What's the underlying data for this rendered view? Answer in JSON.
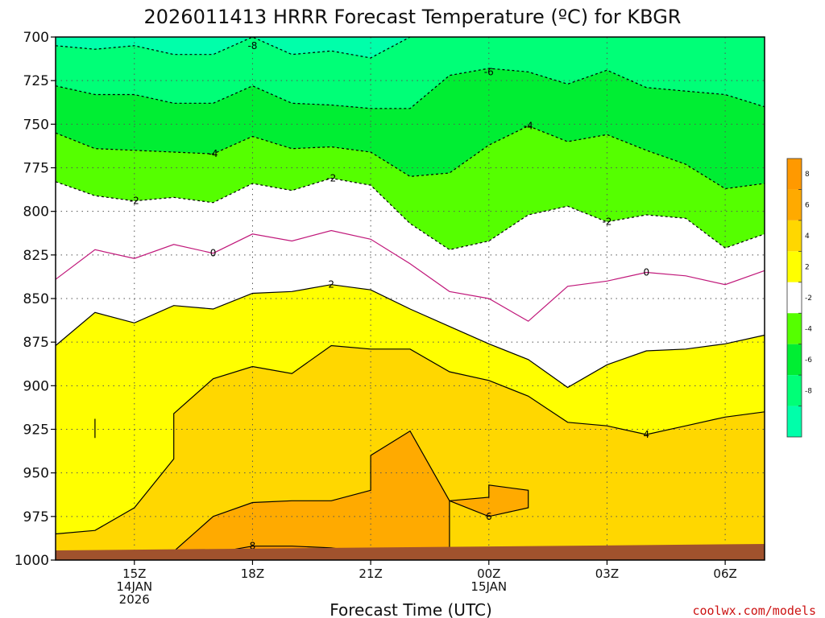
{
  "title": "2026011413 HRRR Forecast Temperature (ºC) for KBGR",
  "credit": "coolwx.com/models",
  "chart_data": {
    "type": "contour",
    "xlabel": "Forecast Time (UTC)",
    "ylabel": "",
    "x_range_hours": [
      13,
      31
    ],
    "y_range_hpa": [
      700,
      1000
    ],
    "y_ticks": [
      "700",
      "725",
      "750",
      "775",
      "800",
      "825",
      "850",
      "875",
      "900",
      "925",
      "950",
      "975",
      "1000"
    ],
    "x_ticks": [
      {
        "hour": 15,
        "label": "15Z",
        "sub1": "14JAN",
        "sub2": "2026"
      },
      {
        "hour": 18,
        "label": "18Z",
        "sub1": "",
        "sub2": ""
      },
      {
        "hour": 21,
        "label": "21Z",
        "sub1": "",
        "sub2": ""
      },
      {
        "hour": 24,
        "label": "00Z",
        "sub1": "15JAN",
        "sub2": ""
      },
      {
        "hour": 27,
        "label": "03Z",
        "sub1": "",
        "sub2": ""
      },
      {
        "hour": 30,
        "label": "06Z",
        "sub1": "",
        "sub2": ""
      }
    ],
    "grid": true,
    "colorbar": {
      "ticks": [
        "8",
        "6",
        "4",
        "2",
        "-2",
        "-4",
        "-6",
        "-8"
      ],
      "colors": {
        "t_gt_8": "#ff9900",
        "t_6_8": "#ffaa00",
        "t_4_6": "#ffd700",
        "t_2_4": "#ffff00",
        "t_m2_2": "#ffffff",
        "t_m4_m2": "#55ff00",
        "t_m6_m4": "#00ee33",
        "t_m8_m6": "#00ff77",
        "t_lt_m8": "#00ffaa"
      }
    },
    "ground_color": "#a0522d",
    "series": [
      {
        "name": "-8",
        "dashed": true,
        "points": [
          [
            13,
            705
          ],
          [
            14,
            707
          ],
          [
            15,
            705
          ],
          [
            16,
            710
          ],
          [
            17,
            710
          ],
          [
            18,
            700
          ],
          [
            19,
            710
          ],
          [
            20,
            708
          ],
          [
            21,
            712
          ],
          [
            22,
            700
          ]
        ]
      },
      {
        "name": "-6",
        "dashed": true,
        "points": [
          [
            13,
            728
          ],
          [
            14,
            733
          ],
          [
            15,
            733
          ],
          [
            16,
            738
          ],
          [
            17,
            738
          ],
          [
            18,
            728
          ],
          [
            19,
            738
          ],
          [
            20,
            739
          ],
          [
            21,
            741
          ],
          [
            22,
            741
          ],
          [
            23,
            722
          ],
          [
            24,
            718
          ],
          [
            25,
            720
          ],
          [
            26,
            727
          ],
          [
            27,
            719
          ],
          [
            28,
            729
          ],
          [
            29,
            731
          ],
          [
            30,
            733
          ],
          [
            31,
            740
          ]
        ]
      },
      {
        "name": "-4",
        "dashed": true,
        "points": [
          [
            13,
            755
          ],
          [
            14,
            764
          ],
          [
            15,
            765
          ],
          [
            16,
            766
          ],
          [
            17,
            767
          ],
          [
            18,
            757
          ],
          [
            19,
            764
          ],
          [
            20,
            763
          ],
          [
            21,
            766
          ],
          [
            22,
            780
          ],
          [
            23,
            778
          ],
          [
            24,
            762
          ],
          [
            25,
            751
          ],
          [
            26,
            760
          ],
          [
            27,
            756
          ],
          [
            28,
            765
          ],
          [
            29,
            773
          ],
          [
            30,
            787
          ],
          [
            31,
            784
          ]
        ]
      },
      {
        "name": "-2",
        "dashed": true,
        "points": [
          [
            13,
            783
          ],
          [
            14,
            791
          ],
          [
            15,
            794
          ],
          [
            16,
            792
          ],
          [
            17,
            795
          ],
          [
            18,
            784
          ],
          [
            19,
            788
          ],
          [
            20,
            781
          ],
          [
            21,
            785
          ],
          [
            22,
            807
          ],
          [
            23,
            822
          ],
          [
            24,
            817
          ],
          [
            25,
            802
          ],
          [
            26,
            797
          ],
          [
            27,
            806
          ],
          [
            28,
            802
          ],
          [
            29,
            804
          ],
          [
            30,
            821
          ],
          [
            31,
            813
          ]
        ]
      },
      {
        "name": "0",
        "dashed": false,
        "points": [
          [
            13,
            839
          ],
          [
            14,
            822
          ],
          [
            15,
            827
          ],
          [
            16,
            819
          ],
          [
            17,
            824
          ],
          [
            18,
            813
          ],
          [
            19,
            817
          ],
          [
            20,
            811
          ],
          [
            21,
            816
          ],
          [
            22,
            830
          ],
          [
            23,
            846
          ],
          [
            24,
            850
          ],
          [
            25,
            863
          ],
          [
            26,
            843
          ],
          [
            27,
            840
          ],
          [
            28,
            835
          ],
          [
            29,
            837
          ],
          [
            30,
            842
          ],
          [
            31,
            834
          ]
        ]
      },
      {
        "name": "2",
        "dashed": false,
        "points": [
          [
            13,
            877
          ],
          [
            14,
            858
          ],
          [
            15,
            864
          ],
          [
            16,
            854
          ],
          [
            17,
            856
          ],
          [
            18,
            847
          ],
          [
            19,
            846
          ],
          [
            20,
            842
          ],
          [
            21,
            845
          ],
          [
            22,
            856
          ],
          [
            23,
            866
          ],
          [
            24,
            876
          ],
          [
            25,
            885
          ],
          [
            26,
            901
          ],
          [
            27,
            888
          ],
          [
            28,
            880
          ],
          [
            29,
            879
          ],
          [
            30,
            876
          ],
          [
            31,
            871
          ]
        ]
      },
      {
        "name": "4",
        "dashed": false,
        "points": [
          [
            13,
            985
          ],
          [
            14,
            983
          ],
          [
            15,
            970
          ],
          [
            16,
            942
          ],
          [
            16,
            916
          ],
          [
            17,
            896
          ],
          [
            18,
            889
          ],
          [
            19,
            893
          ],
          [
            20,
            877
          ],
          [
            21,
            879
          ],
          [
            22,
            879
          ],
          [
            23,
            892
          ],
          [
            24,
            897
          ],
          [
            25,
            906
          ],
          [
            26,
            921
          ],
          [
            27,
            923
          ],
          [
            28,
            928
          ],
          [
            29,
            923
          ],
          [
            30,
            918
          ],
          [
            31,
            915
          ]
        ]
      },
      {
        "name": "6",
        "dashed": false,
        "points": [
          [
            16,
            995
          ],
          [
            17,
            975
          ],
          [
            18,
            967
          ],
          [
            19,
            966
          ],
          [
            20,
            966
          ],
          [
            21,
            960
          ],
          [
            21,
            940
          ],
          [
            22,
            926
          ],
          [
            23,
            966
          ],
          [
            23,
            996
          ]
        ]
      },
      {
        "name": "8",
        "dashed": false,
        "points": [
          [
            17,
            996
          ],
          [
            18,
            992
          ],
          [
            19,
            992
          ],
          [
            20,
            993
          ],
          [
            21,
            996
          ]
        ]
      }
    ],
    "closed_contours": [
      {
        "name": "6",
        "points": [
          [
            24,
            964
          ],
          [
            24,
            957
          ],
          [
            25,
            960
          ],
          [
            25,
            970
          ],
          [
            24,
            975
          ],
          [
            23,
            966
          ]
        ]
      },
      {
        "name": "4",
        "points": [
          [
            14,
            919
          ],
          [
            14,
            925
          ],
          [
            14,
            930
          ]
        ]
      }
    ]
  }
}
